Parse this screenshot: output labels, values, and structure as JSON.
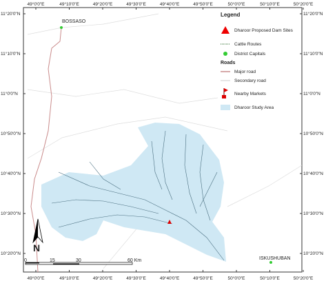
{
  "map": {
    "lon_labels": [
      "49°0'0\"E",
      "49°10'0\"E",
      "49°20'0\"E",
      "49°30'0\"E",
      "49°40'0\"E",
      "49°50'0\"E",
      "50°0'0\"E",
      "50°10'0\"E",
      "50°20'0\"E"
    ],
    "lat_labels": [
      "11°20'0\"N",
      "11°10'0\"N",
      "11°0'0\"N",
      "10°50'0\"N",
      "10°40'0\"N",
      "10°30'0\"N",
      "10°20'0\"N"
    ],
    "places": [
      "BOSSASO",
      "ISKUSHUBAN"
    ],
    "legend": {
      "title": "Legend",
      "dam_sites": "Dharoor Proposed Dam Sites",
      "cattle_routes": "Cattle Routes",
      "district_capitals": "District Capitals",
      "roads_title": "Roads",
      "major_road": "Major road",
      "secondary_road": "Secondary road",
      "markets": "Nearby Markets",
      "study_area": "Dharoor Study Area"
    },
    "scale": [
      "0",
      "15",
      "30",
      "60 Km"
    ],
    "north": "N"
  }
}
